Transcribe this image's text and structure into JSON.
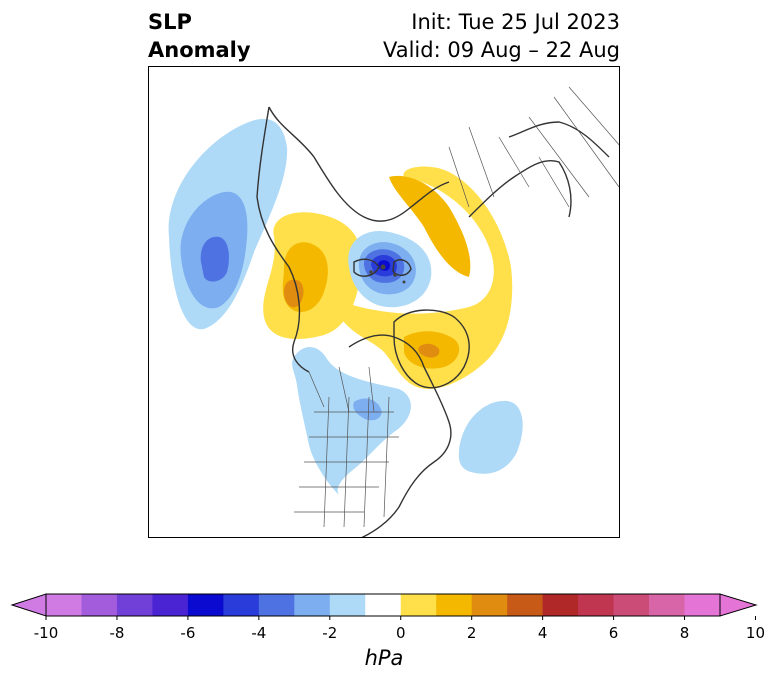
{
  "title": {
    "variable_line1": "SLP",
    "variable_line2": "Anomaly",
    "init": "Init: Tue 25 Jul 2023",
    "valid": "Valid: 09 Aug – 22 Aug"
  },
  "colorbar": {
    "unit": "hPa",
    "ticks": [
      "-10",
      "-8",
      "-6",
      "-4",
      "-2",
      "0",
      "2",
      "4",
      "6",
      "8",
      "10"
    ],
    "levels": [
      -10,
      -9,
      -8,
      -7,
      -6,
      -5,
      -4,
      -3,
      -2,
      -1,
      1,
      2,
      3,
      4,
      5,
      6,
      7,
      8,
      9,
      10
    ],
    "colors": [
      "#d07be4",
      "#a25cdc",
      "#7040d8",
      "#4a24d2",
      "#0a0ad0",
      "#2a3cda",
      "#4f72e3",
      "#7caef0",
      "#aedaf8",
      "#ffffff",
      "#ffe04a",
      "#f4b800",
      "#e08c10",
      "#c85a18",
      "#b02828",
      "#c03650",
      "#cc4c78",
      "#d865a8",
      "#e474d6"
    ],
    "extend_low_color": "#d07be4",
    "extend_high_color": "#e474d6"
  },
  "map": {
    "projection": "north polar stereographic",
    "field": "sea level pressure anomaly",
    "features": [
      "coastlines",
      "country borders",
      "US state and Canadian province borders"
    ]
  }
}
